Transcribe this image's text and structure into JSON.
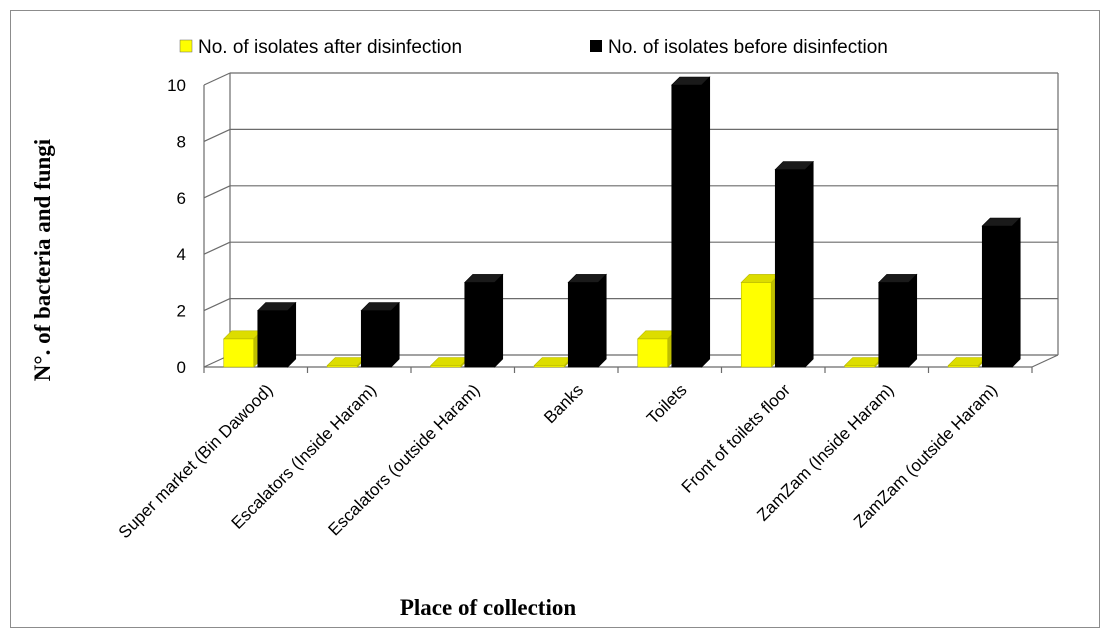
{
  "chart_data": {
    "type": "bar",
    "ylabel": "N°. of bacteria and fungi",
    "xlabel": "Place of collection",
    "ylim": [
      0,
      10
    ],
    "yticks": [
      "0",
      "2",
      "4",
      "6",
      "8",
      "10"
    ],
    "grid": true,
    "legend_position": "top",
    "categories": [
      "Super market (Bin Dawood)",
      "Escalators (Inside Haram)",
      "Escalators (outside Haram)",
      "Banks",
      "Toilets",
      "Front of toilets floor",
      "ZamZam (Inside Haram)",
      "ZamZam (outside Haram)"
    ],
    "series": [
      {
        "name": "No. of isolates after disinfection",
        "values": [
          1,
          0,
          0,
          0,
          1,
          3,
          0,
          0
        ],
        "color": "#ffff00"
      },
      {
        "name": "No. of isolates before disinfection",
        "values": [
          2,
          2,
          3,
          3,
          10,
          7,
          3,
          5
        ],
        "color": "#000000"
      }
    ]
  }
}
